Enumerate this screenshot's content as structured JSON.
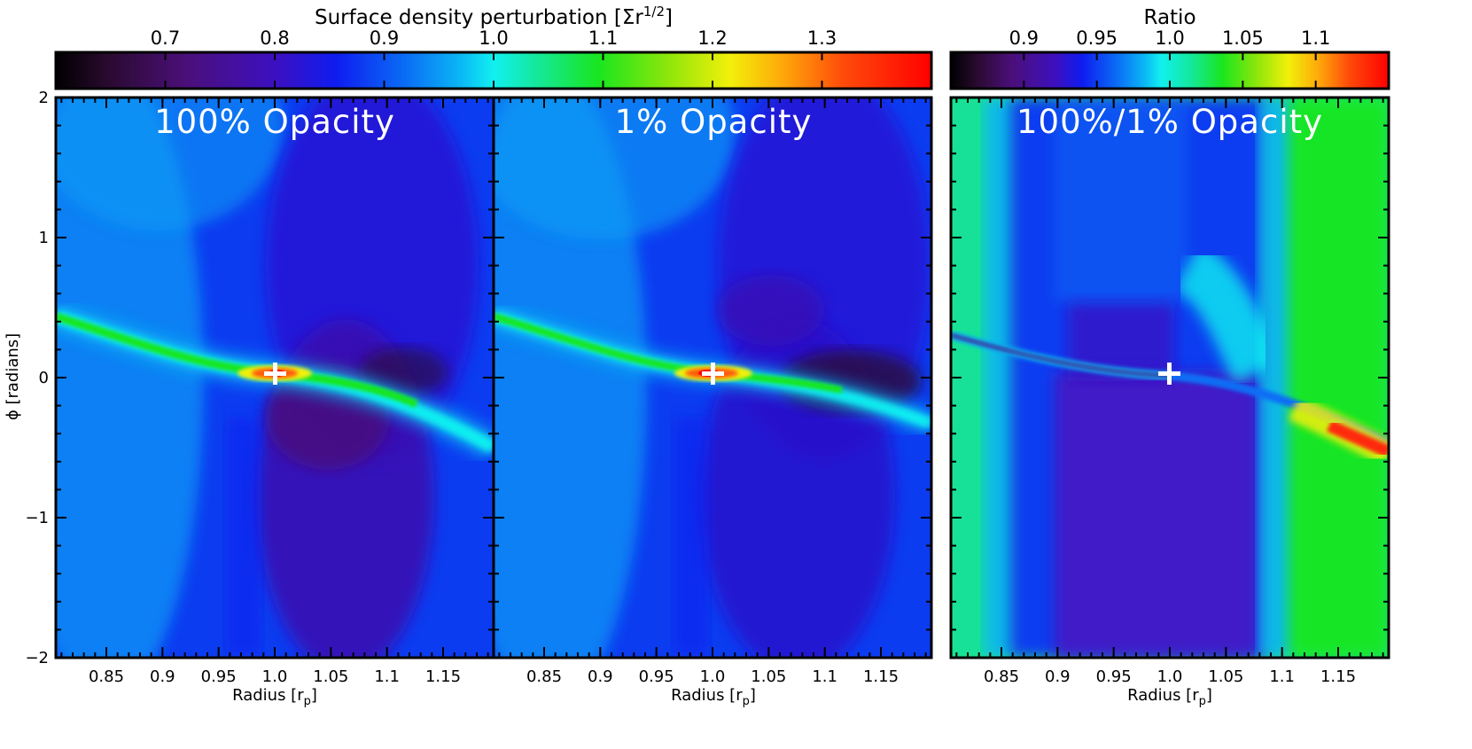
{
  "chart_data": [
    {
      "type": "heatmap",
      "title": "100% Opacity",
      "xlabel": "Radius [r",
      "xlabel_sub": "p",
      "xlabel_close": "]",
      "ylabel": "ϕ [radians]",
      "xlim": [
        0.805,
        1.195
      ],
      "ylim": [
        -2,
        2
      ],
      "xticks": [
        "0.85",
        "0.9",
        "0.95",
        "1.0",
        "1.05",
        "1.1",
        "1.15"
      ],
      "yticks": [
        "−2",
        "−1",
        "0",
        "1",
        "2"
      ],
      "marker": {
        "symbol": "+",
        "x": 1.0,
        "y": 0.0
      },
      "colorbar": {
        "title": "Surface density perturbation [Σr",
        "title_sup": "1/2",
        "title_close": "]",
        "range": [
          0.6,
          1.4
        ],
        "ticks": [
          "0.7",
          "0.8",
          "0.9",
          "1.0",
          "1.1",
          "1.2",
          "1.3"
        ],
        "colormap": "rainbow+black"
      },
      "features": {
        "background_level": 0.88,
        "wake_peak": 1.4,
        "gap_trough": 0.72
      }
    },
    {
      "type": "heatmap",
      "title": "1% Opacity",
      "xlabel": "Radius [r",
      "xlabel_sub": "p",
      "xlabel_close": "]",
      "xlim": [
        0.805,
        1.195
      ],
      "ylim": [
        -2,
        2
      ],
      "xticks": [
        "0.85",
        "0.9",
        "0.95",
        "1.0",
        "1.05",
        "1.1",
        "1.15"
      ],
      "marker": {
        "symbol": "+",
        "x": 1.0,
        "y": 0.0
      },
      "colorbar": "shared",
      "features": {
        "background_level": 0.88,
        "wake_peak": 1.4,
        "gap_trough": 0.72
      }
    },
    {
      "type": "heatmap",
      "title": "100%/1% Opacity",
      "xlabel": "Radius [r",
      "xlabel_sub": "p",
      "xlabel_close": "]",
      "xlim": [
        0.805,
        1.195
      ],
      "ylim": [
        -2,
        2
      ],
      "xticks": [
        "0.85",
        "0.9",
        "0.95",
        "1.0",
        "1.05",
        "1.1",
        "1.15"
      ],
      "marker": {
        "symbol": "+",
        "x": 1.0,
        "y": 0.0
      },
      "colorbar": {
        "title": "Ratio",
        "range": [
          0.85,
          1.15
        ],
        "ticks": [
          "0.9",
          "0.95",
          "1.0",
          "1.05",
          "1.1"
        ],
        "colormap": "rainbow+black"
      },
      "features": {
        "background_level": 1.02,
        "center_band_level": 0.93,
        "outer_wake_peak": 1.13
      }
    }
  ]
}
